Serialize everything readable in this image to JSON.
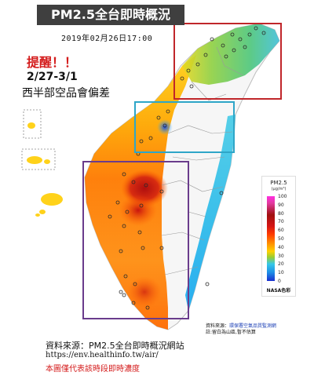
{
  "title": "PM2.5全台即時概況",
  "timestamp": "2019年02月26日17:00",
  "alert": {
    "title": "提醒！！",
    "dates": "2/27-3/1",
    "description": "西半部空品會偏差"
  },
  "legend": {
    "title": "PM2.5",
    "unit": "(μg/m³)",
    "ticks": [
      "100",
      "90",
      "80",
      "70",
      "60",
      "50",
      "40",
      "30",
      "20",
      "10",
      "0"
    ],
    "credit": "NASA色彩"
  },
  "source_right": {
    "line1_prefix": "資料來源：",
    "line1_link": "環保署空氣品質監測網",
    "line2": "註:留白為山區,暫不估算"
  },
  "source": {
    "label": "資料來源：PM2.5全台即時概況網站",
    "url": "https://env.healthinfo.tw/air/",
    "note": "本圖僅代表該時段即時濃度"
  },
  "colors": {
    "north_box": "#c0262a",
    "central_box": "#2ea6c8",
    "south_box": "#6a3c8c",
    "alert": "#d41c1c",
    "title_bg": "#3f3f3f"
  }
}
